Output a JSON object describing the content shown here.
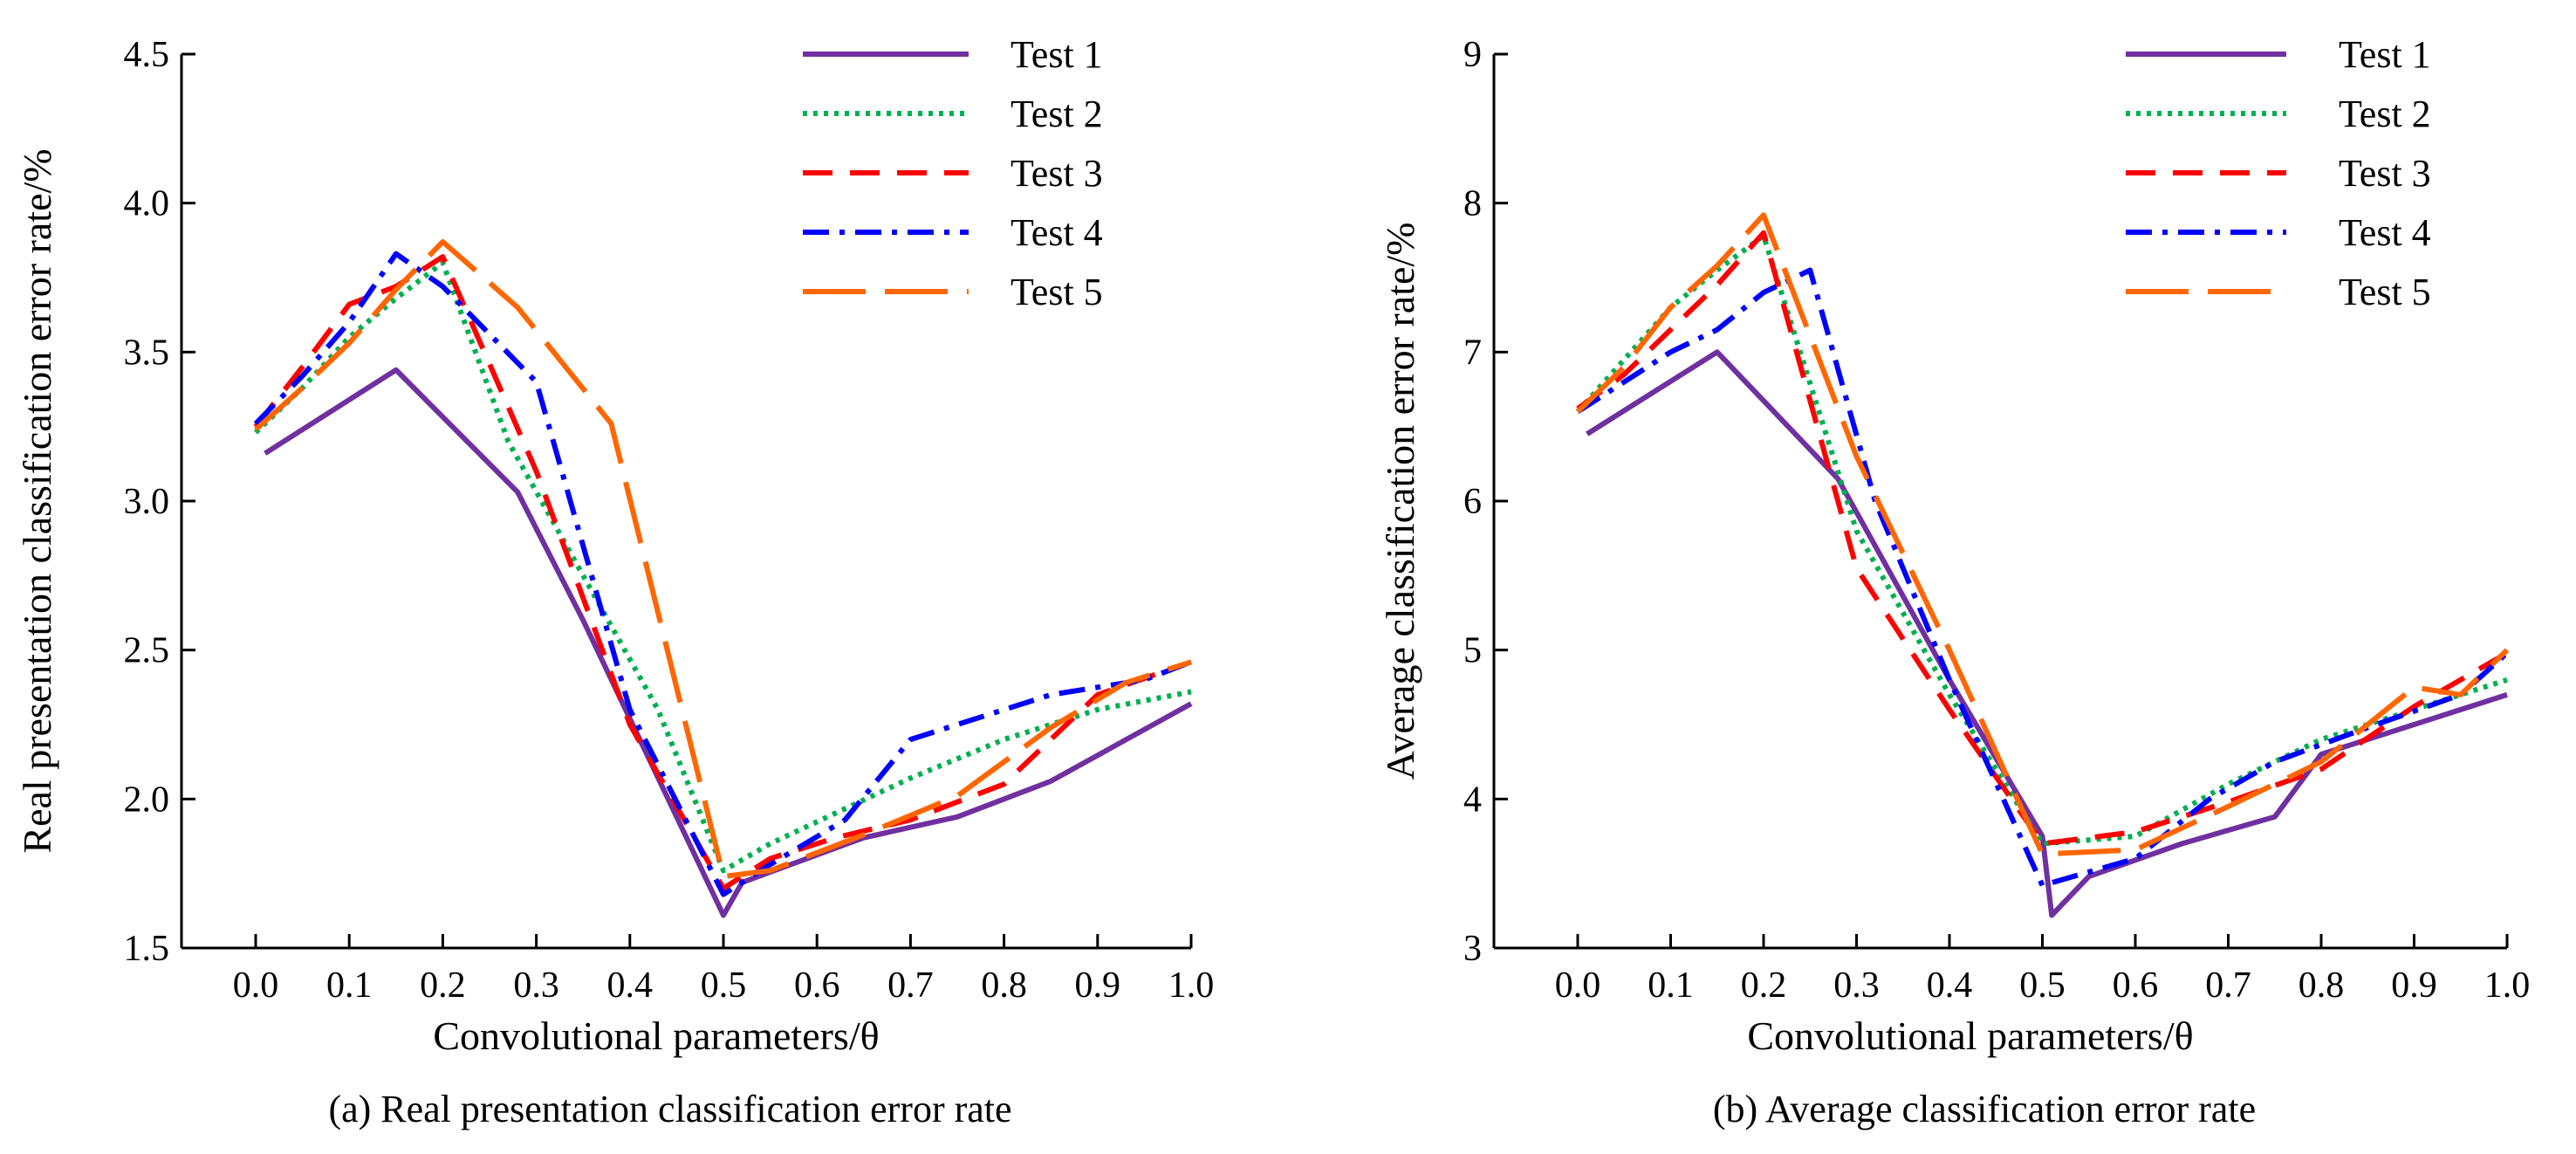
{
  "chart_data": [
    {
      "id": "a",
      "type": "line",
      "caption": "(a) Real presentation classification error rate",
      "xlabel": "Convolutional parameters/θ",
      "ylabel": "Real presentation classification error rate/%",
      "xlim": [
        -0.05,
        1.0
      ],
      "ylim": [
        1.5,
        4.5
      ],
      "xticks": [
        "0.0",
        "0.1",
        "0.2",
        "0.3",
        "0.4",
        "0.5",
        "0.6",
        "0.7",
        "0.8",
        "0.9",
        "1.0"
      ],
      "yticks": [
        "1.5",
        "2.0",
        "2.5",
        "3.0",
        "3.5",
        "4.0",
        "4.5"
      ],
      "legend_position": "top-right",
      "grid": false,
      "series": [
        {
          "name": "Test 1",
          "color": "#7030A0",
          "dash": "solid",
          "x": [
            0.01,
            0.15,
            0.28,
            0.35,
            0.5,
            0.52,
            0.65,
            0.75,
            0.85,
            1.0
          ],
          "y": [
            3.16,
            3.44,
            3.03,
            2.6,
            1.61,
            1.72,
            1.87,
            1.94,
            2.06,
            2.32
          ]
        },
        {
          "name": "Test 2",
          "color": "#00B050",
          "dash": "dotted",
          "x": [
            0.0,
            0.05,
            0.1,
            0.15,
            0.2,
            0.27,
            0.35,
            0.43,
            0.5,
            0.55,
            0.7,
            0.8,
            0.9,
            1.0
          ],
          "y": [
            3.23,
            3.38,
            3.55,
            3.68,
            3.8,
            3.2,
            2.75,
            2.3,
            1.76,
            1.85,
            2.07,
            2.2,
            2.3,
            2.36
          ]
        },
        {
          "name": "Test 3",
          "color": "#FF0000",
          "dash": "long-dash",
          "x": [
            0.0,
            0.05,
            0.1,
            0.15,
            0.2,
            0.3,
            0.4,
            0.5,
            0.55,
            0.62,
            0.7,
            0.8,
            0.9,
            1.0
          ],
          "y": [
            3.25,
            3.45,
            3.66,
            3.72,
            3.82,
            3.1,
            2.25,
            1.7,
            1.8,
            1.87,
            1.93,
            2.05,
            2.35,
            2.46
          ]
        },
        {
          "name": "Test 4",
          "color": "#0000FF",
          "dash": "dash-dot",
          "x": [
            0.0,
            0.05,
            0.1,
            0.15,
            0.2,
            0.3,
            0.4,
            0.5,
            0.55,
            0.63,
            0.7,
            0.78,
            0.85,
            0.95,
            1.0
          ],
          "y": [
            3.26,
            3.42,
            3.6,
            3.83,
            3.72,
            3.4,
            2.3,
            1.68,
            1.78,
            1.93,
            2.2,
            2.28,
            2.35,
            2.4,
            2.46
          ]
        },
        {
          "name": "Test 5",
          "color": "#FF6600",
          "dash": "long-dash-short",
          "x": [
            0.0,
            0.05,
            0.1,
            0.15,
            0.2,
            0.28,
            0.38,
            0.5,
            0.55,
            0.65,
            0.75,
            0.85,
            0.93,
            1.0
          ],
          "y": [
            3.24,
            3.38,
            3.53,
            3.71,
            3.87,
            3.65,
            3.26,
            1.74,
            1.76,
            1.88,
            2.01,
            2.24,
            2.39,
            2.46
          ]
        }
      ]
    },
    {
      "id": "b",
      "type": "line",
      "caption": "(b) Average classification error rate",
      "xlabel": "Convolutional parameters/θ",
      "ylabel": "Average classification error rate/%",
      "xlim": [
        -0.05,
        1.0
      ],
      "ylim": [
        3,
        9
      ],
      "xticks": [
        "0.0",
        "0.1",
        "0.2",
        "0.3",
        "0.4",
        "0.5",
        "0.6",
        "0.7",
        "0.8",
        "0.9",
        "1.0"
      ],
      "yticks": [
        "3",
        "4",
        "5",
        "6",
        "7",
        "8",
        "9"
      ],
      "legend_position": "top-right",
      "grid": false,
      "series": [
        {
          "name": "Test 1",
          "color": "#7030A0",
          "dash": "solid",
          "x": [
            0.01,
            0.15,
            0.28,
            0.4,
            0.5,
            0.51,
            0.55,
            0.65,
            0.75,
            0.8,
            0.9,
            1.0
          ],
          "y": [
            6.45,
            7.0,
            6.15,
            4.8,
            3.75,
            3.22,
            3.48,
            3.7,
            3.88,
            4.3,
            4.5,
            4.7
          ]
        },
        {
          "name": "Test 2",
          "color": "#00B050",
          "dash": "dotted",
          "x": [
            0.0,
            0.05,
            0.1,
            0.15,
            0.2,
            0.3,
            0.4,
            0.5,
            0.6,
            0.7,
            0.8,
            0.9,
            1.0
          ],
          "y": [
            6.6,
            6.95,
            7.3,
            7.55,
            7.78,
            5.8,
            4.7,
            3.7,
            3.75,
            4.1,
            4.4,
            4.6,
            4.8
          ]
        },
        {
          "name": "Test 3",
          "color": "#FF0000",
          "dash": "long-dash",
          "x": [
            0.0,
            0.05,
            0.1,
            0.15,
            0.2,
            0.3,
            0.4,
            0.5,
            0.6,
            0.7,
            0.8,
            0.9,
            1.0
          ],
          "y": [
            6.62,
            6.85,
            7.15,
            7.45,
            7.8,
            5.55,
            4.6,
            3.7,
            3.78,
            3.98,
            4.2,
            4.62,
            4.98
          ]
        },
        {
          "name": "Test 4",
          "color": "#0000FF",
          "dash": "dash-dot",
          "x": [
            0.0,
            0.05,
            0.1,
            0.15,
            0.2,
            0.25,
            0.32,
            0.4,
            0.5,
            0.6,
            0.68,
            0.75,
            0.85,
            0.95,
            1.0
          ],
          "y": [
            6.6,
            6.8,
            7.0,
            7.15,
            7.4,
            7.55,
            6.0,
            4.8,
            3.42,
            3.6,
            4.0,
            4.25,
            4.48,
            4.7,
            4.98
          ]
        },
        {
          "name": "Test 5",
          "color": "#FF6600",
          "dash": "long-dash-short",
          "x": [
            0.0,
            0.05,
            0.1,
            0.15,
            0.2,
            0.3,
            0.4,
            0.5,
            0.6,
            0.7,
            0.8,
            0.9,
            0.95,
            1.0
          ],
          "y": [
            6.6,
            6.9,
            7.3,
            7.58,
            7.92,
            6.3,
            5.0,
            3.63,
            3.66,
            3.95,
            4.25,
            4.75,
            4.7,
            5.0
          ]
        }
      ]
    }
  ]
}
